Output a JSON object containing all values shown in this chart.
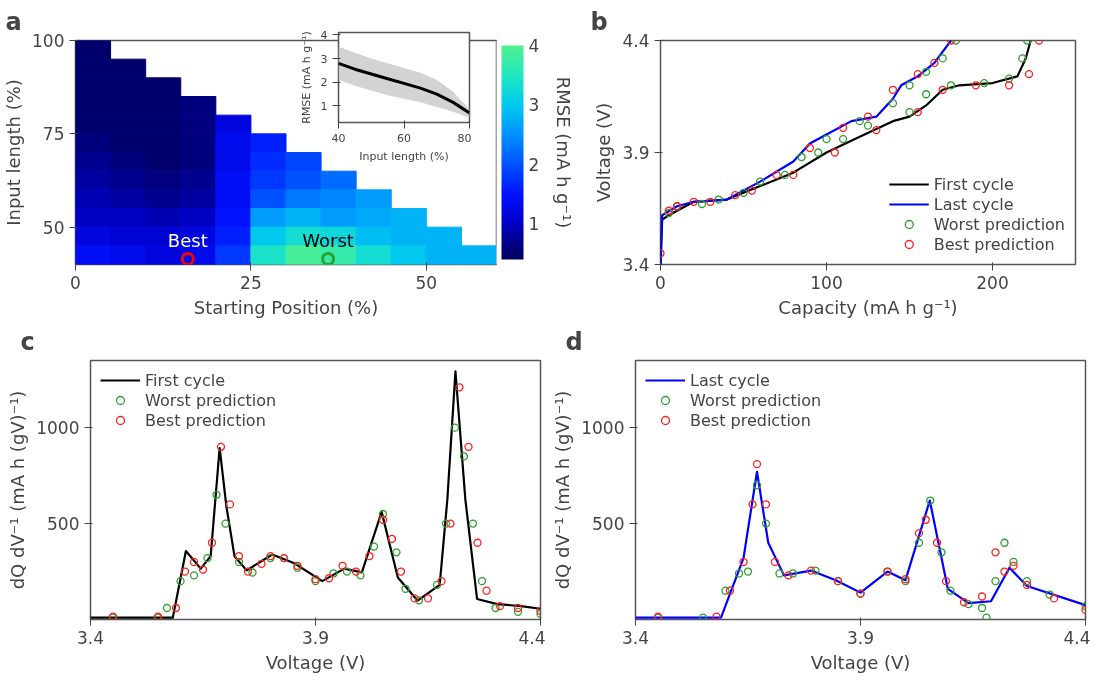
{
  "chart_data": [
    {
      "type": "heatmap",
      "title": "a",
      "xlabel": "Starting Position (%)",
      "ylabel": "Input length (%)",
      "clabel": "RMSE (mA h g⁻¹)",
      "x": [
        2.5,
        7.5,
        12.5,
        17.5,
        22.5,
        27.5,
        32.5,
        37.5,
        42.5,
        47.5,
        52.5,
        57.5
      ],
      "xlim": [
        0,
        60
      ],
      "xticks": [
        0,
        25,
        50
      ],
      "ylim": [
        40,
        100
      ],
      "yticks": [
        50,
        75,
        100
      ],
      "clim": [
        0.4,
        4.0
      ],
      "cticks": [
        1,
        2,
        3,
        4
      ],
      "cells": [
        [
          0.5,
          null,
          null,
          null,
          null,
          null,
          null,
          null,
          null,
          null,
          null,
          null
        ],
        [
          0.5,
          0.5,
          null,
          null,
          null,
          null,
          null,
          null,
          null,
          null,
          null,
          null
        ],
        [
          0.5,
          0.5,
          0.5,
          null,
          null,
          null,
          null,
          null,
          null,
          null,
          null,
          null
        ],
        [
          0.5,
          0.5,
          0.5,
          0.6,
          null,
          null,
          null,
          null,
          null,
          null,
          null,
          null
        ],
        [
          0.5,
          0.5,
          0.5,
          0.6,
          1.2,
          null,
          null,
          null,
          null,
          null,
          null,
          null
        ],
        [
          0.6,
          0.5,
          0.5,
          0.6,
          1.3,
          1.6,
          null,
          null,
          null,
          null,
          null,
          null
        ],
        [
          0.7,
          0.6,
          0.5,
          0.6,
          1.3,
          1.7,
          1.9,
          null,
          null,
          null,
          null,
          null
        ],
        [
          0.8,
          0.7,
          0.6,
          0.7,
          1.4,
          1.8,
          2.0,
          2.2,
          null,
          null,
          null,
          null
        ],
        [
          0.9,
          0.8,
          0.7,
          0.8,
          1.4,
          2.0,
          2.3,
          2.4,
          2.6,
          null,
          null,
          null
        ],
        [
          1.0,
          1.0,
          0.9,
          1.0,
          1.5,
          2.6,
          2.8,
          2.6,
          2.7,
          2.8,
          null,
          null
        ],
        [
          1.2,
          1.1,
          1.1,
          1.2,
          1.6,
          3.0,
          3.3,
          3.2,
          2.9,
          2.8,
          2.8,
          null
        ],
        [
          1.4,
          1.3,
          1.2,
          1.3,
          1.8,
          3.4,
          3.9,
          3.7,
          3.3,
          3.0,
          2.8,
          2.8
        ]
      ],
      "annotations": [
        {
          "text": "Best",
          "x": 16,
          "y": 41.5
        },
        {
          "text": "Worst",
          "x": 36,
          "y": 41.5
        }
      ]
    },
    {
      "type": "line",
      "xlabel": "Input length (%)",
      "ylabel": "RMSE (mA h g⁻¹)",
      "xlim": [
        40,
        80
      ],
      "xticks": [
        40,
        60,
        80
      ],
      "ylim": [
        0.3,
        4.1
      ],
      "yticks": [
        1,
        2,
        3,
        4
      ],
      "x": [
        40,
        45,
        50,
        55,
        60,
        65,
        70,
        75,
        80
      ],
      "series": [
        {
          "color": "#000000",
          "values": [
            2.8,
            2.55,
            2.35,
            2.15,
            1.95,
            1.75,
            1.5,
            1.15,
            0.7
          ],
          "lower": [
            2.1,
            1.85,
            1.65,
            1.45,
            1.3,
            1.15,
            0.95,
            0.75,
            0.5
          ],
          "upper": [
            3.5,
            3.25,
            3.0,
            2.8,
            2.6,
            2.4,
            2.1,
            1.6,
            0.85
          ]
        }
      ]
    },
    {
      "type": "line",
      "title": "b",
      "xlabel": "Capacity (mA h g⁻¹)",
      "ylabel": "Voltage (V)",
      "xlim": [
        0,
        250
      ],
      "xticks": [
        0,
        100,
        200
      ],
      "ylim": [
        3.4,
        4.4
      ],
      "yticks": [
        3.4,
        3.9,
        4.4
      ],
      "legend": "bottom right",
      "series": [
        {
          "name": "First cycle",
          "type": "line",
          "color": "#000000",
          "x": [
            0,
            1,
            5,
            20,
            40,
            60,
            80,
            100,
            120,
            140,
            150,
            160,
            170,
            180,
            200,
            215,
            220,
            223
          ],
          "values": [
            3.4,
            3.6,
            3.62,
            3.68,
            3.69,
            3.75,
            3.81,
            3.9,
            3.97,
            4.04,
            4.06,
            4.11,
            4.18,
            4.2,
            4.21,
            4.24,
            4.32,
            4.4
          ]
        },
        {
          "name": "Last cycle",
          "type": "line",
          "color": "#0000ff",
          "x": [
            0,
            1,
            10,
            20,
            40,
            60,
            80,
            90,
            100,
            115,
            130,
            140,
            145,
            155,
            165,
            175
          ],
          "values": [
            3.4,
            3.62,
            3.66,
            3.68,
            3.69,
            3.77,
            3.86,
            3.94,
            3.98,
            4.04,
            4.06,
            4.14,
            4.2,
            4.24,
            4.3,
            4.4
          ]
        },
        {
          "name": "Worst prediction",
          "type": "scatter",
          "marker": "circle",
          "color": "#2ca02c",
          "x": [
            5,
            25,
            50,
            75,
            95,
            110,
            125,
            150,
            160,
            175,
            195,
            210,
            218,
            221,
            10,
            35,
            60,
            85,
            100,
            120,
            140,
            150,
            160,
            170,
            178
          ],
          "values": [
            3.63,
            3.67,
            3.72,
            3.8,
            3.9,
            3.96,
            4.02,
            4.08,
            4.16,
            4.2,
            4.21,
            4.23,
            4.32,
            4.4,
            3.66,
            3.69,
            3.77,
            3.88,
            3.96,
            4.04,
            4.12,
            4.2,
            4.26,
            4.32,
            4.4
          ]
        },
        {
          "name": "Best prediction",
          "type": "scatter",
          "marker": "circle",
          "color": "#ff2020",
          "x": [
            0,
            10,
            30,
            55,
            80,
            105,
            130,
            155,
            170,
            190,
            210,
            222,
            228,
            5,
            20,
            45,
            70,
            90,
            110,
            125,
            140,
            155,
            165,
            175
          ],
          "values": [
            3.45,
            3.66,
            3.68,
            3.73,
            3.8,
            3.9,
            4.0,
            4.08,
            4.18,
            4.2,
            4.2,
            4.25,
            4.4,
            3.64,
            3.68,
            3.71,
            3.8,
            3.92,
            4.01,
            4.06,
            4.18,
            4.25,
            4.3,
            4.4
          ]
        }
      ]
    },
    {
      "type": "line",
      "title": "c",
      "xlabel": "Voltage (V)",
      "ylabel": "dQ dV⁻¹ (mA h (gV)⁻¹)",
      "xlim": [
        3.4,
        4.4
      ],
      "xticks": [
        3.4,
        3.9,
        4.4
      ],
      "ylim": [
        0,
        1350
      ],
      "yticks": [
        500,
        1000
      ],
      "legend": "top left",
      "series": [
        {
          "name": "First cycle",
          "type": "line",
          "color": "#000000",
          "x": [
            3.4,
            3.583,
            3.612,
            3.645,
            3.667,
            3.687,
            3.702,
            3.72,
            3.747,
            3.804,
            3.853,
            3.915,
            3.964,
            4.003,
            4.047,
            4.083,
            4.127,
            4.176,
            4.193,
            4.211,
            4.233,
            4.259,
            4.304,
            4.357,
            4.399
          ],
          "values": [
            10,
            10,
            357,
            265,
            330,
            894,
            589,
            330,
            256,
            339,
            293,
            200,
            265,
            246,
            561,
            219,
            98,
            181,
            626,
            1293,
            626,
            107,
            80,
            70,
            56
          ]
        },
        {
          "name": "Worst prediction",
          "type": "scatter",
          "marker": "circle",
          "color": "#2ca02c",
          "x": [
            3.45,
            3.55,
            3.57,
            3.6,
            3.63,
            3.66,
            3.68,
            3.7,
            3.73,
            3.76,
            3.8,
            3.83,
            3.86,
            3.9,
            3.94,
            3.97,
            4.0,
            4.03,
            4.05,
            4.08,
            4.1,
            4.13,
            4.17,
            4.19,
            4.21,
            4.23,
            4.25,
            4.27,
            4.3,
            4.35,
            4.4
          ],
          "values": [
            10,
            10,
            60,
            200,
            230,
            320,
            650,
            500,
            300,
            245,
            320,
            320,
            270,
            200,
            240,
            250,
            230,
            380,
            550,
            350,
            160,
            100,
            180,
            500,
            1000,
            850,
            500,
            200,
            60,
            40,
            30
          ]
        },
        {
          "name": "Best prediction",
          "type": "scatter",
          "marker": "circle",
          "color": "#ff2020",
          "x": [
            3.45,
            3.55,
            3.59,
            3.61,
            3.63,
            3.65,
            3.67,
            3.69,
            3.71,
            3.73,
            3.75,
            3.78,
            3.8,
            3.83,
            3.86,
            3.9,
            3.93,
            3.96,
            3.99,
            4.02,
            4.05,
            4.07,
            4.09,
            4.12,
            4.15,
            4.18,
            4.2,
            4.22,
            4.24,
            4.26,
            4.28,
            4.31,
            4.35,
            4.4
          ],
          "values": [
            15,
            15,
            60,
            250,
            300,
            260,
            400,
            900,
            600,
            330,
            250,
            290,
            330,
            320,
            280,
            210,
            215,
            280,
            250,
            330,
            520,
            420,
            250,
            110,
            110,
            200,
            500,
            1210,
            900,
            400,
            150,
            70,
            60,
            45
          ]
        }
      ]
    },
    {
      "type": "line",
      "title": "d",
      "xlabel": "Voltage (V)",
      "ylabel": "dQ dV⁻¹ (mA h (gV)⁻¹)",
      "xlim": [
        3.4,
        4.4
      ],
      "xticks": [
        3.4,
        3.9,
        4.4
      ],
      "ylim": [
        0,
        1350
      ],
      "yticks": [
        500,
        1000
      ],
      "legend": "top left",
      "series": [
        {
          "name": "Last cycle",
          "type": "line",
          "color": "#0000ff",
          "x": [
            3.4,
            3.59,
            3.64,
            3.67,
            3.695,
            3.73,
            3.79,
            3.845,
            3.9,
            3.96,
            4.0,
            4.054,
            4.094,
            4.14,
            4.19,
            4.231,
            4.27,
            4.4
          ],
          "values": [
            10,
            10,
            320,
            770,
            400,
            230,
            255,
            205,
            140,
            250,
            205,
            620,
            160,
            85,
            95,
            270,
            175,
            75
          ]
        },
        {
          "name": "Worst prediction",
          "type": "scatter",
          "marker": "circle",
          "color": "#2ca02c",
          "x": [
            3.45,
            3.55,
            3.6,
            3.63,
            3.65,
            3.67,
            3.69,
            3.72,
            3.75,
            3.8,
            3.85,
            3.9,
            3.96,
            4.0,
            4.03,
            4.055,
            4.08,
            4.1,
            4.14,
            4.17,
            4.18,
            4.2,
            4.22,
            4.24,
            4.27,
            4.32,
            4.4
          ],
          "values": [
            10,
            10,
            150,
            240,
            250,
            700,
            500,
            240,
            240,
            255,
            200,
            135,
            250,
            200,
            400,
            620,
            350,
            150,
            80,
            60,
            10,
            200,
            400,
            300,
            200,
            130,
            70
          ]
        },
        {
          "name": "Best prediction",
          "type": "scatter",
          "marker": "circle",
          "color": "#ff2020",
          "x": [
            3.45,
            3.58,
            3.61,
            3.64,
            3.66,
            3.67,
            3.69,
            3.71,
            3.74,
            3.79,
            3.85,
            3.9,
            3.96,
            4.0,
            4.03,
            4.045,
            4.07,
            4.09,
            4.13,
            4.17,
            4.2,
            4.22,
            4.24,
            4.27,
            4.33,
            4.4
          ],
          "values": [
            15,
            15,
            150,
            300,
            600,
            810,
            600,
            300,
            230,
            255,
            200,
            135,
            250,
            210,
            450,
            520,
            400,
            200,
            90,
            120,
            350,
            250,
            280,
            180,
            110,
            50
          ]
        }
      ]
    }
  ]
}
